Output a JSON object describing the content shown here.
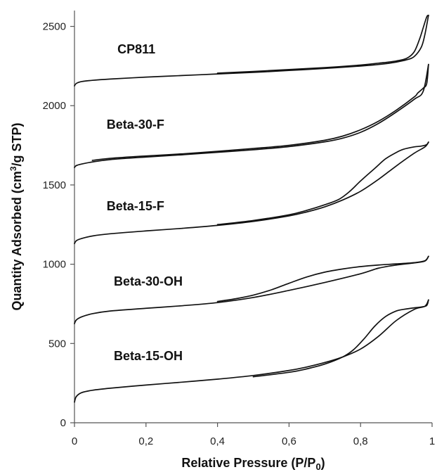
{
  "chart_data": {
    "type": "line",
    "title": "",
    "xlabel": "Relative Pressure (P/P",
    "xlabel_sub": "0",
    "xlabel_end": ")",
    "ylabel": "Quantity Adsorbed (cm",
    "ylabel_sup": "3",
    "ylabel_end": "/g STP)",
    "xlim": [
      0,
      1
    ],
    "ylim": [
      0,
      2600
    ],
    "x_ticks": [
      0,
      0.2,
      0.4,
      0.6,
      0.8,
      1
    ],
    "x_tick_labels": [
      "0",
      "0,2",
      "0,4",
      "0,6",
      "0,8",
      "1"
    ],
    "y_ticks": [
      0,
      500,
      1000,
      1500,
      2000,
      2500
    ],
    "y_tick_labels": [
      "0",
      "500",
      "1000",
      "1500",
      "2000",
      "2500"
    ],
    "grid": false,
    "series": [
      {
        "name": "CP811",
        "label_at": [
          0.12,
          2330
        ],
        "adsorption": [
          [
            0.0,
            2125
          ],
          [
            0.005,
            2140
          ],
          [
            0.02,
            2152
          ],
          [
            0.05,
            2160
          ],
          [
            0.1,
            2168
          ],
          [
            0.2,
            2180
          ],
          [
            0.3,
            2190
          ],
          [
            0.4,
            2200
          ],
          [
            0.5,
            2210
          ],
          [
            0.6,
            2222
          ],
          [
            0.7,
            2235
          ],
          [
            0.8,
            2250
          ],
          [
            0.86,
            2262
          ],
          [
            0.9,
            2275
          ],
          [
            0.93,
            2290
          ],
          [
            0.95,
            2310
          ],
          [
            0.97,
            2370
          ],
          [
            0.98,
            2450
          ],
          [
            0.99,
            2570
          ]
        ],
        "desorption": [
          [
            0.99,
            2570
          ],
          [
            0.985,
            2560
          ],
          [
            0.975,
            2490
          ],
          [
            0.965,
            2420
          ],
          [
            0.95,
            2340
          ],
          [
            0.93,
            2300
          ],
          [
            0.9,
            2282
          ],
          [
            0.85,
            2268
          ],
          [
            0.8,
            2256
          ],
          [
            0.7,
            2240
          ],
          [
            0.6,
            2228
          ],
          [
            0.5,
            2216
          ],
          [
            0.4,
            2205
          ]
        ]
      },
      {
        "name": "Beta-30-F",
        "label_at": [
          0.09,
          1855
        ],
        "adsorption": [
          [
            0.0,
            1610
          ],
          [
            0.005,
            1622
          ],
          [
            0.02,
            1632
          ],
          [
            0.05,
            1645
          ],
          [
            0.1,
            1660
          ],
          [
            0.2,
            1676
          ],
          [
            0.3,
            1690
          ],
          [
            0.4,
            1706
          ],
          [
            0.5,
            1722
          ],
          [
            0.6,
            1742
          ],
          [
            0.7,
            1772
          ],
          [
            0.75,
            1795
          ],
          [
            0.8,
            1832
          ],
          [
            0.85,
            1888
          ],
          [
            0.9,
            1960
          ],
          [
            0.95,
            2040
          ],
          [
            0.975,
            2090
          ],
          [
            0.99,
            2260
          ]
        ],
        "desorption": [
          [
            0.99,
            2260
          ],
          [
            0.985,
            2140
          ],
          [
            0.975,
            2110
          ],
          [
            0.96,
            2080
          ],
          [
            0.95,
            2055
          ],
          [
            0.9,
            1972
          ],
          [
            0.85,
            1902
          ],
          [
            0.8,
            1848
          ],
          [
            0.75,
            1808
          ],
          [
            0.7,
            1782
          ],
          [
            0.6,
            1750
          ],
          [
            0.5,
            1730
          ],
          [
            0.4,
            1712
          ],
          [
            0.3,
            1696
          ],
          [
            0.2,
            1683
          ],
          [
            0.1,
            1668
          ],
          [
            0.05,
            1655
          ]
        ]
      },
      {
        "name": "Beta-15-F",
        "label_at": [
          0.09,
          1340
        ],
        "adsorption": [
          [
            0.0,
            1130
          ],
          [
            0.005,
            1148
          ],
          [
            0.02,
            1162
          ],
          [
            0.05,
            1178
          ],
          [
            0.1,
            1192
          ],
          [
            0.2,
            1210
          ],
          [
            0.3,
            1226
          ],
          [
            0.4,
            1245
          ],
          [
            0.5,
            1270
          ],
          [
            0.6,
            1305
          ],
          [
            0.65,
            1330
          ],
          [
            0.7,
            1362
          ],
          [
            0.75,
            1405
          ],
          [
            0.8,
            1460
          ],
          [
            0.85,
            1535
          ],
          [
            0.9,
            1620
          ],
          [
            0.95,
            1700
          ],
          [
            0.98,
            1740
          ],
          [
            0.99,
            1770
          ]
        ],
        "desorption": [
          [
            0.99,
            1770
          ],
          [
            0.985,
            1755
          ],
          [
            0.97,
            1745
          ],
          [
            0.95,
            1740
          ],
          [
            0.92,
            1725
          ],
          [
            0.9,
            1705
          ],
          [
            0.87,
            1665
          ],
          [
            0.84,
            1605
          ],
          [
            0.8,
            1525
          ],
          [
            0.77,
            1460
          ],
          [
            0.74,
            1410
          ],
          [
            0.7,
            1375
          ],
          [
            0.65,
            1340
          ],
          [
            0.6,
            1312
          ],
          [
            0.5,
            1276
          ],
          [
            0.4,
            1250
          ]
        ]
      },
      {
        "name": "Beta-30-OH",
        "label_at": [
          0.11,
          865
        ],
        "adsorption": [
          [
            0.0,
            625
          ],
          [
            0.005,
            648
          ],
          [
            0.02,
            668
          ],
          [
            0.05,
            688
          ],
          [
            0.1,
            705
          ],
          [
            0.2,
            722
          ],
          [
            0.3,
            738
          ],
          [
            0.4,
            758
          ],
          [
            0.5,
            790
          ],
          [
            0.6,
            835
          ],
          [
            0.7,
            885
          ],
          [
            0.8,
            940
          ],
          [
            0.85,
            975
          ],
          [
            0.9,
            995
          ],
          [
            0.95,
            1008
          ],
          [
            0.98,
            1020
          ],
          [
            0.99,
            1050
          ]
        ],
        "desorption": [
          [
            0.99,
            1050
          ],
          [
            0.98,
            1022
          ],
          [
            0.95,
            1010
          ],
          [
            0.9,
            1002
          ],
          [
            0.85,
            995
          ],
          [
            0.8,
            985
          ],
          [
            0.75,
            970
          ],
          [
            0.7,
            950
          ],
          [
            0.65,
            920
          ],
          [
            0.6,
            880
          ],
          [
            0.55,
            838
          ],
          [
            0.5,
            805
          ],
          [
            0.45,
            782
          ],
          [
            0.4,
            765
          ]
        ]
      },
      {
        "name": "Beta-15-OH",
        "label_at": [
          0.11,
          395
        ],
        "adsorption": [
          [
            0.0,
            130
          ],
          [
            0.005,
            165
          ],
          [
            0.02,
            190
          ],
          [
            0.05,
            205
          ],
          [
            0.1,
            218
          ],
          [
            0.2,
            238
          ],
          [
            0.3,
            256
          ],
          [
            0.4,
            275
          ],
          [
            0.5,
            298
          ],
          [
            0.6,
            330
          ],
          [
            0.65,
            352
          ],
          [
            0.7,
            380
          ],
          [
            0.75,
            415
          ],
          [
            0.8,
            465
          ],
          [
            0.85,
            545
          ],
          [
            0.9,
            645
          ],
          [
            0.95,
            715
          ],
          [
            0.98,
            735
          ],
          [
            0.99,
            775
          ]
        ],
        "desorption": [
          [
            0.99,
            775
          ],
          [
            0.985,
            740
          ],
          [
            0.97,
            730
          ],
          [
            0.95,
            725
          ],
          [
            0.92,
            715
          ],
          [
            0.9,
            705
          ],
          [
            0.87,
            670
          ],
          [
            0.84,
            610
          ],
          [
            0.81,
            530
          ],
          [
            0.78,
            460
          ],
          [
            0.75,
            415
          ],
          [
            0.7,
            370
          ],
          [
            0.65,
            340
          ],
          [
            0.6,
            318
          ],
          [
            0.5,
            290
          ]
        ]
      }
    ]
  }
}
